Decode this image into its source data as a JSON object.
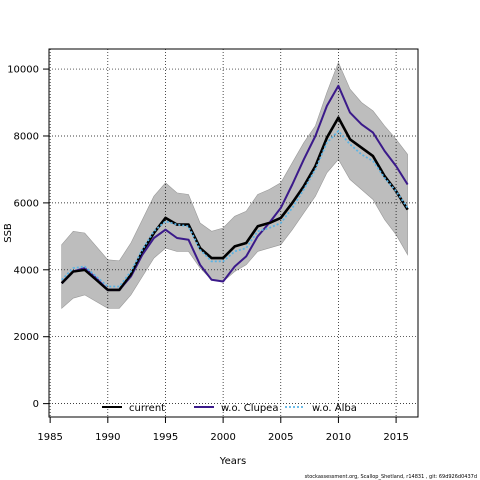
{
  "chart_data": {
    "type": "line",
    "xlabel": "Years",
    "ylabel": "SSB",
    "xlim": [
      1984.9,
      2016.9
    ],
    "ylim": [
      -400,
      10600
    ],
    "xticks": [
      1985,
      1990,
      1995,
      2000,
      2005,
      2010,
      2015
    ],
    "yticks": [
      0,
      2000,
      4000,
      6000,
      8000,
      10000
    ],
    "grid": true,
    "legend_position": "bottom",
    "x": [
      1986,
      1987,
      1988,
      1989,
      1990,
      1991,
      1992,
      1993,
      1994,
      1995,
      1996,
      1997,
      1998,
      1999,
      2000,
      2001,
      2002,
      2003,
      2004,
      2005,
      2006,
      2007,
      2008,
      2009,
      2010,
      2011,
      2012,
      2013,
      2014,
      2015,
      2016
    ],
    "band": {
      "upper": [
        4750,
        5150,
        5100,
        4700,
        4300,
        4270,
        4800,
        5500,
        6200,
        6600,
        6300,
        6250,
        5400,
        5150,
        5250,
        5600,
        5750,
        6250,
        6400,
        6600,
        7200,
        7800,
        8300,
        9300,
        10200,
        9400,
        9000,
        8750,
        8300,
        7900,
        7450
      ],
      "lower": [
        2850,
        3150,
        3250,
        3050,
        2850,
        2850,
        3250,
        3800,
        4350,
        4650,
        4550,
        4550,
        4050,
        3700,
        3650,
        3950,
        4150,
        4550,
        4650,
        4750,
        5200,
        5700,
        6200,
        6900,
        7300,
        6700,
        6400,
        6100,
        5500,
        5050,
        4450
      ]
    },
    "series": [
      {
        "name": "current",
        "color": "#000000",
        "values": [
          3600,
          3950,
          4000,
          3700,
          3400,
          3400,
          3850,
          4550,
          5100,
          5550,
          5350,
          5350,
          4650,
          4350,
          4350,
          4700,
          4800,
          5300,
          5400,
          5550,
          6000,
          6500,
          7100,
          7950,
          8550,
          7900,
          7650,
          7400,
          6800,
          6350,
          5800
        ]
      },
      {
        "name": "w.o. Clupea",
        "color": "#3b1a8a",
        "values": [
          3600,
          3950,
          4050,
          3750,
          3400,
          3400,
          3800,
          4450,
          4950,
          5200,
          4950,
          4900,
          4150,
          3700,
          3650,
          4100,
          4400,
          5000,
          5400,
          5850,
          6550,
          7300,
          8000,
          8900,
          9500,
          8700,
          8350,
          8100,
          7550,
          7100,
          6550
        ]
      },
      {
        "name": "w.o. Alba",
        "color": "#5ab4e5",
        "values": [
          3700,
          4050,
          4100,
          3800,
          3500,
          3500,
          3950,
          4600,
          5150,
          5450,
          5350,
          5300,
          4600,
          4250,
          4250,
          4550,
          4650,
          5150,
          5250,
          5400,
          5850,
          6400,
          7000,
          7800,
          8150,
          7750,
          7450,
          7250,
          6750,
          6350,
          5850
        ]
      }
    ]
  },
  "footer_text": "stockassessment.org, Scallop_Shetland, r14831 , git: 69d926d0437d"
}
